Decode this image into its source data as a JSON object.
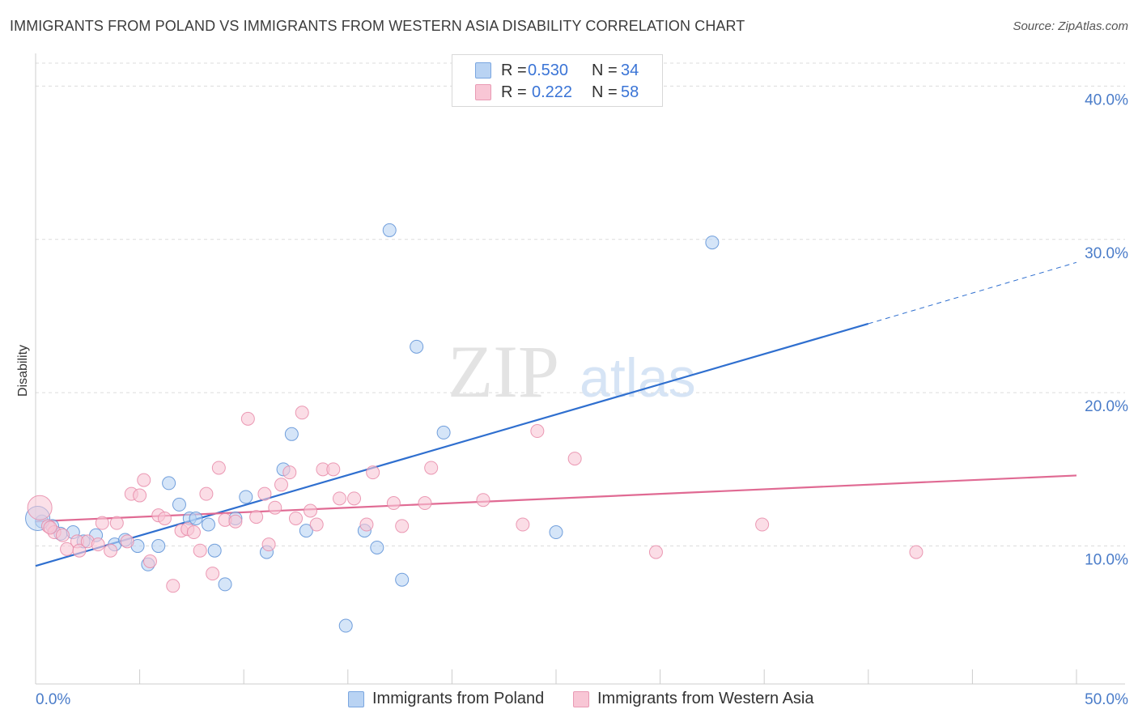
{
  "title": "IMMIGRANTS FROM POLAND VS IMMIGRANTS FROM WESTERN ASIA DISABILITY CORRELATION CHART",
  "source": "Source: ZipAtlas.com",
  "watermark": "ZIPatlas",
  "legend": {
    "rows": [
      {
        "r_label": "R =",
        "r_value": "0.530",
        "n_label": "N =",
        "n_value": "34",
        "color": "#a8c8f0"
      },
      {
        "r_label": "R =",
        "r_value": "0.222",
        "n_label": "N =",
        "n_value": "58",
        "color": "#f5b8cb"
      }
    ]
  },
  "bottom_legend": [
    {
      "label": "Immigrants from Poland",
      "color": "#a8c8f0"
    },
    {
      "label": "Immigrants from Western Asia",
      "color": "#f5b8cb"
    }
  ],
  "chart_data": {
    "type": "scatter",
    "title": "IMMIGRANTS FROM POLAND VS IMMIGRANTS FROM WESTERN ASIA DISABILITY CORRELATION CHART",
    "xlabel": "",
    "ylabel": "Disability",
    "xlim": [
      0,
      50
    ],
    "ylim": [
      1,
      41.5
    ],
    "x_tick_labels": [
      "0.0%",
      "50.0%"
    ],
    "y_ticks": [
      10,
      20,
      30,
      40
    ],
    "y_tick_labels": [
      "10.0%",
      "20.0%",
      "30.0%",
      "40.0%"
    ],
    "grid": "horizontal dashed",
    "legend_position": "top-center",
    "series": [
      {
        "name": "Immigrants from Poland",
        "color": "#5b8fd6",
        "fill": "#b9d3f3",
        "trend": {
          "x0": 0,
          "y0": 8.7,
          "x1": 40,
          "y1": 24.5,
          "dashed_to_x": 50,
          "dashed_to_y": 28.5,
          "color": "#2f6fcf"
        },
        "points": [
          [
            0.3,
            11.6
          ],
          [
            0.8,
            11.3
          ],
          [
            1.2,
            10.8
          ],
          [
            1.8,
            10.9
          ],
          [
            2.3,
            10.3
          ],
          [
            2.9,
            10.7
          ],
          [
            3.8,
            10.1
          ],
          [
            4.3,
            10.4
          ],
          [
            4.9,
            10.0
          ],
          [
            5.4,
            8.8
          ],
          [
            5.9,
            10.0
          ],
          [
            6.4,
            14.1
          ],
          [
            6.9,
            12.7
          ],
          [
            7.4,
            11.8
          ],
          [
            7.7,
            11.8
          ],
          [
            8.3,
            11.4
          ],
          [
            8.6,
            9.7
          ],
          [
            9.1,
            7.5
          ],
          [
            9.6,
            11.8
          ],
          [
            10.1,
            13.2
          ],
          [
            11.1,
            9.6
          ],
          [
            11.9,
            15.0
          ],
          [
            12.3,
            17.3
          ],
          [
            13.0,
            11.0
          ],
          [
            14.9,
            4.8
          ],
          [
            15.8,
            11.0
          ],
          [
            16.4,
            9.9
          ],
          [
            17.0,
            30.6
          ],
          [
            17.6,
            7.8
          ],
          [
            18.3,
            23.0
          ],
          [
            19.6,
            17.4
          ],
          [
            25.0,
            10.9
          ],
          [
            32.5,
            29.8
          ],
          [
            0.1,
            11.8
          ]
        ]
      },
      {
        "name": "Immigrants from Western Asia",
        "color": "#e88aa8",
        "fill": "#f8c6d5",
        "trend": {
          "x0": 0,
          "y0": 11.6,
          "x1": 50,
          "y1": 14.6,
          "color": "#e06a93"
        },
        "points": [
          [
            0.2,
            12.5
          ],
          [
            0.6,
            11.3
          ],
          [
            0.9,
            10.9
          ],
          [
            1.3,
            10.7
          ],
          [
            1.5,
            9.8
          ],
          [
            2.0,
            10.3
          ],
          [
            2.1,
            9.7
          ],
          [
            2.5,
            10.3
          ],
          [
            3.0,
            10.1
          ],
          [
            3.2,
            11.5
          ],
          [
            3.6,
            9.7
          ],
          [
            3.9,
            11.5
          ],
          [
            4.4,
            10.3
          ],
          [
            4.6,
            13.4
          ],
          [
            5.0,
            13.3
          ],
          [
            5.2,
            14.3
          ],
          [
            5.5,
            9.0
          ],
          [
            5.9,
            12.0
          ],
          [
            6.2,
            11.8
          ],
          [
            6.6,
            7.4
          ],
          [
            7.0,
            11.0
          ],
          [
            7.3,
            11.1
          ],
          [
            7.6,
            10.9
          ],
          [
            7.9,
            9.7
          ],
          [
            8.2,
            13.4
          ],
          [
            8.5,
            8.2
          ],
          [
            8.8,
            15.1
          ],
          [
            9.1,
            11.7
          ],
          [
            9.6,
            11.6
          ],
          [
            10.2,
            18.3
          ],
          [
            10.6,
            11.9
          ],
          [
            11.0,
            13.4
          ],
          [
            11.2,
            10.1
          ],
          [
            11.5,
            12.5
          ],
          [
            11.8,
            14.0
          ],
          [
            12.2,
            14.8
          ],
          [
            12.5,
            11.8
          ],
          [
            12.8,
            18.7
          ],
          [
            13.2,
            12.3
          ],
          [
            13.5,
            11.4
          ],
          [
            13.8,
            15.0
          ],
          [
            14.3,
            15.0
          ],
          [
            14.6,
            13.1
          ],
          [
            15.3,
            13.1
          ],
          [
            15.9,
            11.4
          ],
          [
            16.2,
            14.8
          ],
          [
            17.2,
            12.8
          ],
          [
            17.6,
            11.3
          ],
          [
            18.7,
            12.8
          ],
          [
            19.0,
            15.1
          ],
          [
            21.5,
            13.0
          ],
          [
            23.4,
            11.4
          ],
          [
            24.1,
            17.5
          ],
          [
            25.9,
            15.7
          ],
          [
            29.8,
            9.6
          ],
          [
            34.9,
            11.4
          ],
          [
            42.3,
            9.6
          ],
          [
            0.7,
            11.2
          ]
        ]
      }
    ]
  }
}
